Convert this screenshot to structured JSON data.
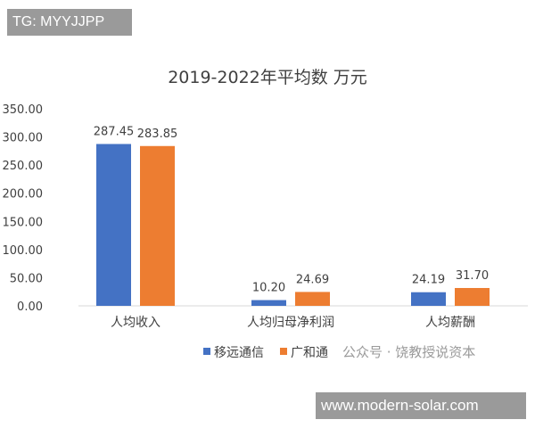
{
  "tag_label": "TG: MYYJJPP",
  "watermark": "公众号 · 饶教授说资本",
  "site_label": "www.modern-solar.com",
  "chart_data": {
    "type": "bar",
    "title": "2019-2022年平均数 万元",
    "xlabel": "",
    "ylabel": "",
    "ylim": [
      0,
      350
    ],
    "yticks": [
      "0.00",
      "50.00",
      "100.00",
      "150.00",
      "200.00",
      "250.00",
      "300.00",
      "350.00"
    ],
    "grid": false,
    "legend_position": "bottom",
    "categories": [
      "人均收入",
      "人均归母净利润",
      "人均薪酬"
    ],
    "series": [
      {
        "name": "移远通信",
        "color": "#4472C4",
        "values": [
          287.45,
          10.2,
          24.19
        ],
        "labels": [
          "287.45",
          "10.20",
          "24.19"
        ]
      },
      {
        "name": "广和通",
        "color": "#ED7D31",
        "values": [
          283.85,
          24.69,
          31.7
        ],
        "labels": [
          "283.85",
          "24.69",
          "31.70"
        ]
      }
    ]
  }
}
